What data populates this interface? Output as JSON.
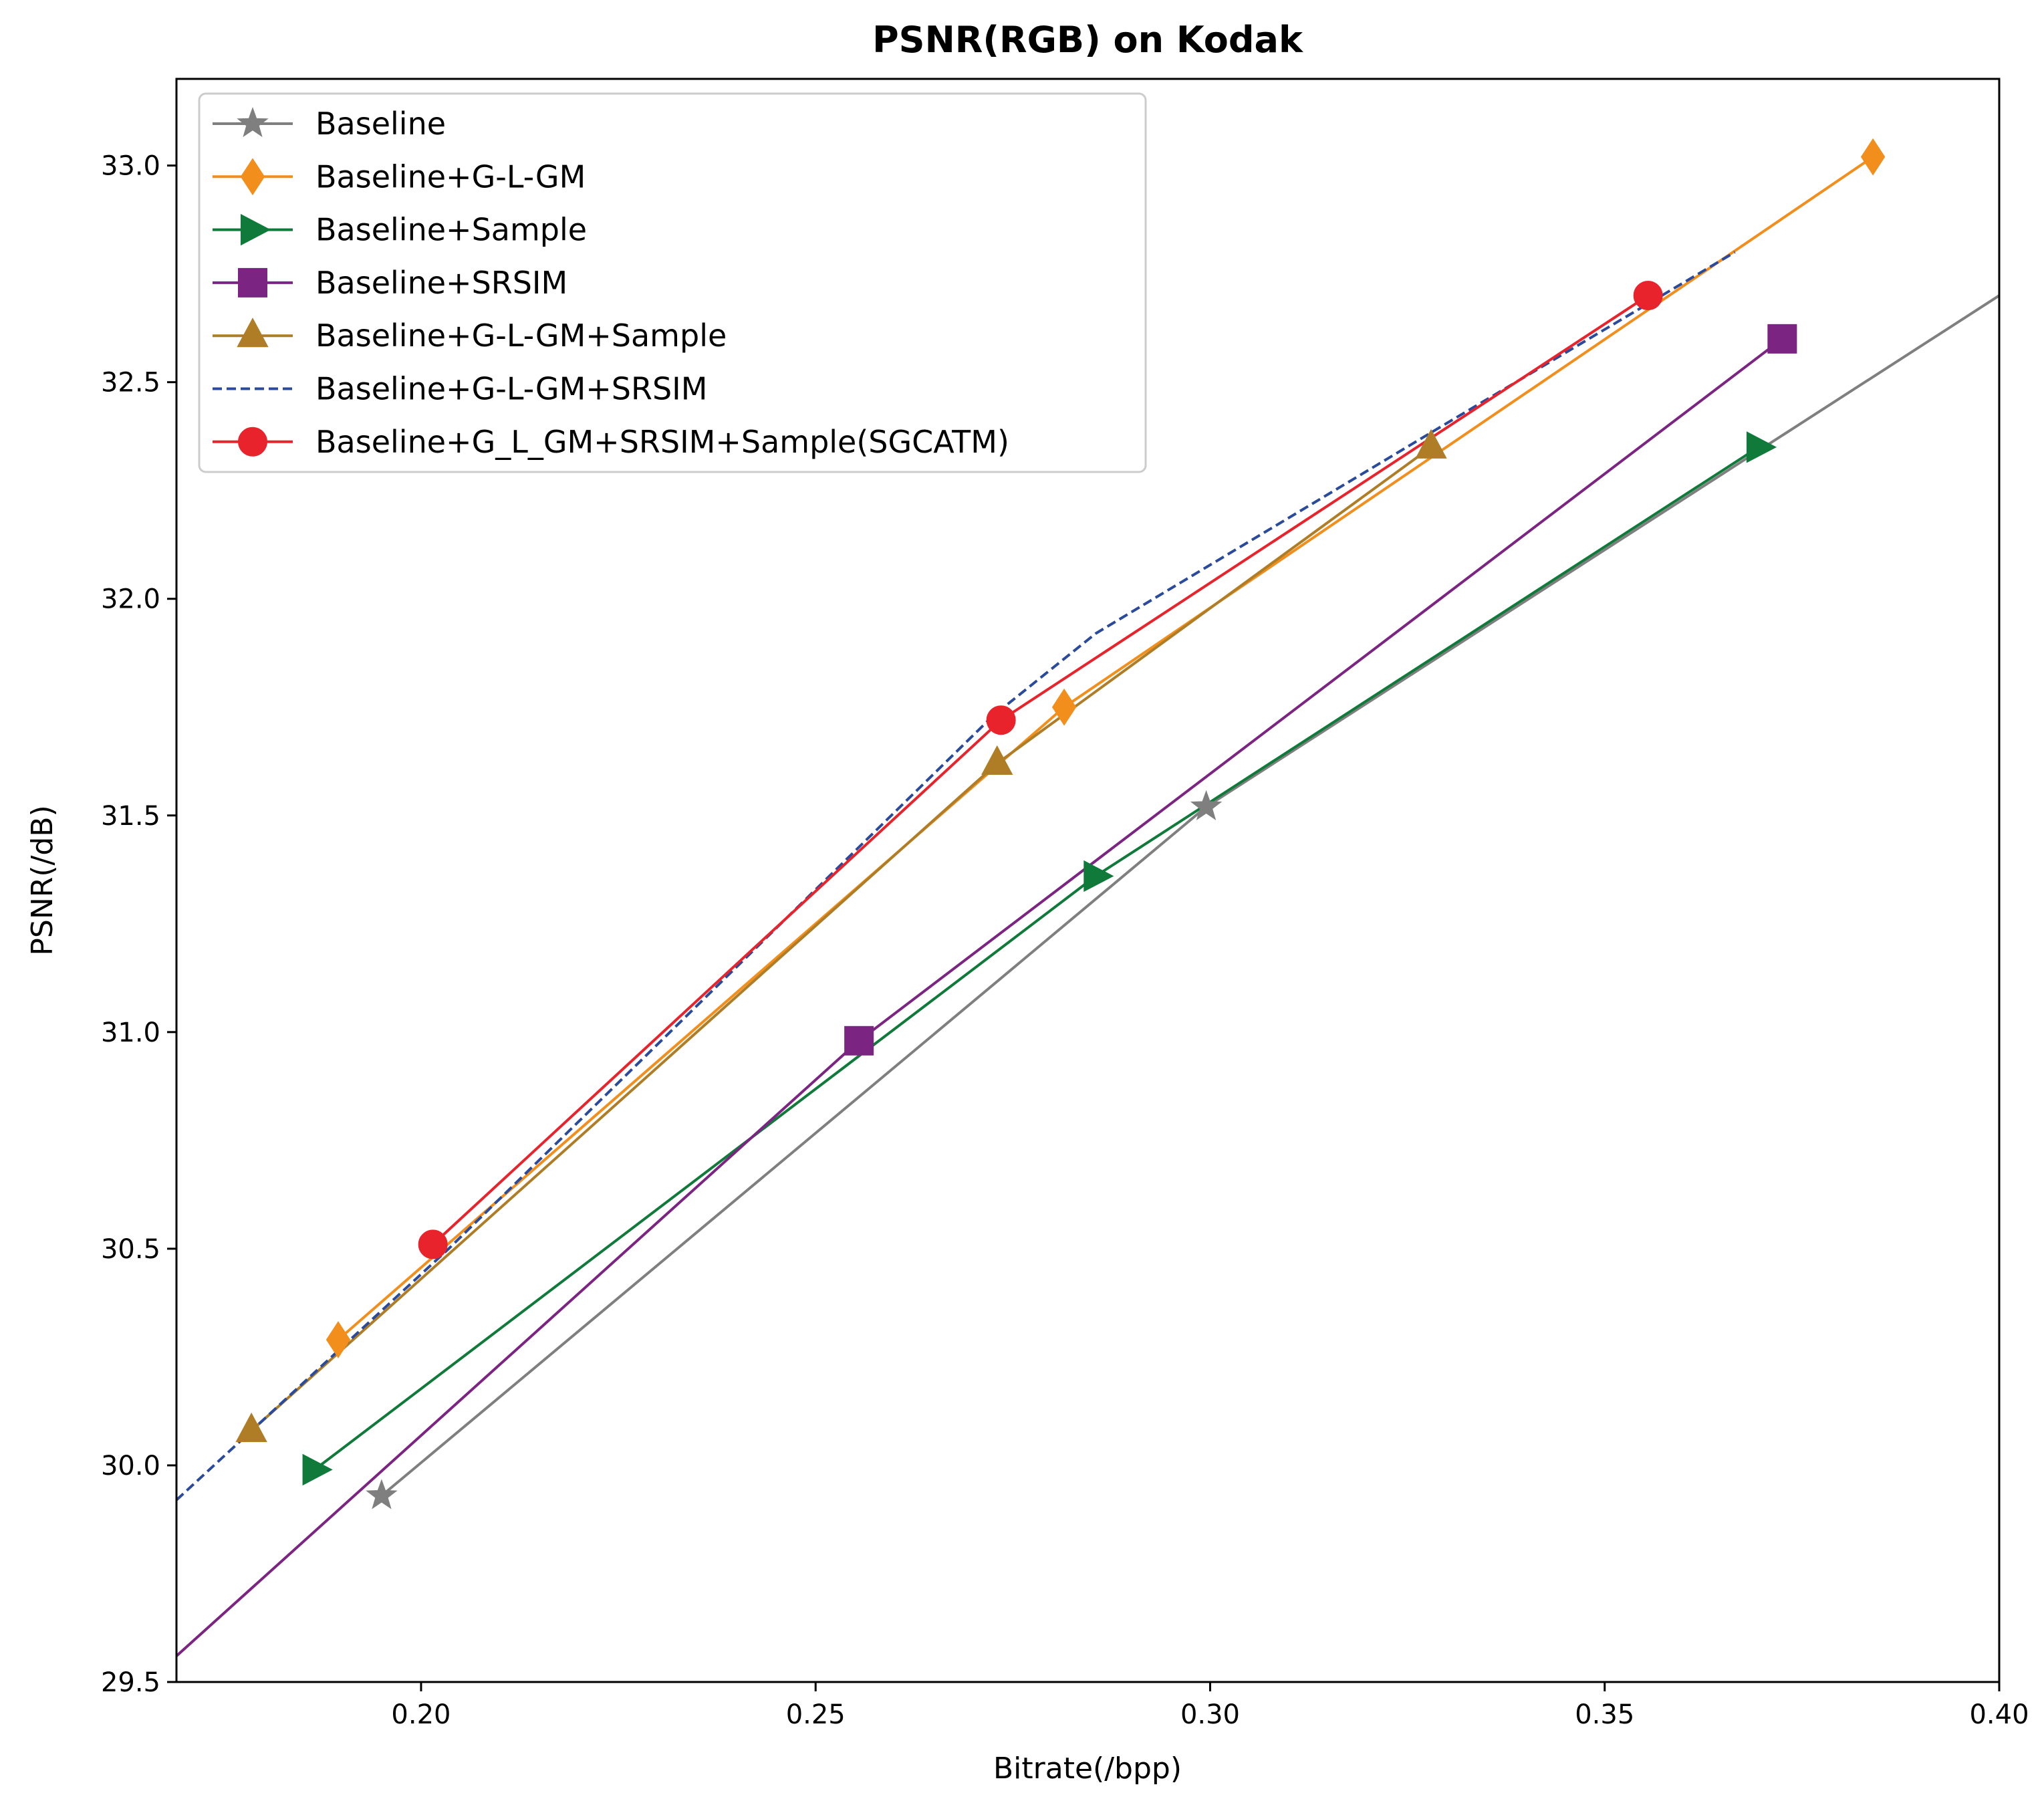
{
  "chart_data": {
    "type": "line",
    "title": "PSNR(RGB) on Kodak",
    "xlabel": "Bitrate(/bpp)",
    "ylabel": "PSNR(/dB)",
    "xlim": [
      0.169,
      0.4
    ],
    "ylim": [
      29.5,
      33.2
    ],
    "xticks": [
      {
        "value": 0.2,
        "label": "0.20"
      },
      {
        "value": 0.25,
        "label": "0.25"
      },
      {
        "value": 0.3,
        "label": "0.30"
      },
      {
        "value": 0.35,
        "label": "0.35"
      },
      {
        "value": 0.4,
        "label": "0.40"
      }
    ],
    "yticks": [
      {
        "value": 29.5,
        "label": "29.5"
      },
      {
        "value": 30.0,
        "label": "30.0"
      },
      {
        "value": 30.5,
        "label": "30.5"
      },
      {
        "value": 31.0,
        "label": "31.0"
      },
      {
        "value": 31.5,
        "label": "31.5"
      },
      {
        "value": 32.0,
        "label": "32.0"
      },
      {
        "value": 32.5,
        "label": "32.5"
      },
      {
        "value": 33.0,
        "label": "33.0"
      }
    ],
    "grid": false,
    "legend": "top-left",
    "series": [
      {
        "name": "Baseline",
        "color": "#7f7f7f",
        "marker": "star",
        "dashed": false,
        "x": [
          0.195,
          0.2995,
          0.4
        ],
        "y": [
          29.93,
          31.52,
          32.7
        ],
        "marked": [
          true,
          true,
          false
        ]
      },
      {
        "name": "Baseline+G-L-GM",
        "color": "#f28e1c",
        "marker": "diamond",
        "dashed": false,
        "x": [
          0.1895,
          0.2815,
          0.384
        ],
        "y": [
          30.29,
          31.75,
          33.02
        ],
        "marked": [
          true,
          true,
          true
        ]
      },
      {
        "name": "Baseline+Sample",
        "color": "#0f7a3a",
        "marker": "triangle-right",
        "dashed": false,
        "x": [
          0.1865,
          0.2855,
          0.3695
        ],
        "y": [
          29.99,
          31.36,
          32.35
        ],
        "marked": [
          true,
          true,
          true
        ]
      },
      {
        "name": "Baseline+SRSIM",
        "color": "#7b2482",
        "marker": "square",
        "dashed": false,
        "x": [
          0.169,
          0.2555,
          0.3725
        ],
        "y": [
          29.56,
          30.98,
          32.6
        ],
        "marked": [
          false,
          true,
          true
        ]
      },
      {
        "name": "Baseline+G-L-GM+Sample",
        "color": "#b07d27",
        "marker": "triangle-up",
        "dashed": false,
        "x": [
          0.1785,
          0.273,
          0.328
        ],
        "y": [
          30.08,
          31.62,
          32.35
        ],
        "marked": [
          true,
          true,
          true
        ]
      },
      {
        "name": "Baseline+G-L-GM+SRSIM",
        "color": "#2a4a9c",
        "marker": "none",
        "dashed": true,
        "x": [
          0.169,
          0.2035,
          0.2725,
          0.2855,
          0.302,
          0.3295,
          0.3665
        ],
        "y": [
          29.92,
          30.5,
          31.73,
          31.92,
          32.1,
          32.4,
          32.8
        ],
        "marked": [
          false,
          false,
          false,
          false,
          false,
          false,
          false
        ]
      },
      {
        "name": "Baseline+G_L_GM+SRSIM+Sample(SGCATM)",
        "color": "#e8232b",
        "marker": "circle",
        "dashed": false,
        "x": [
          0.2015,
          0.2735,
          0.3555
        ],
        "y": [
          30.51,
          31.72,
          32.7
        ],
        "marked": [
          true,
          true,
          true
        ]
      }
    ]
  }
}
